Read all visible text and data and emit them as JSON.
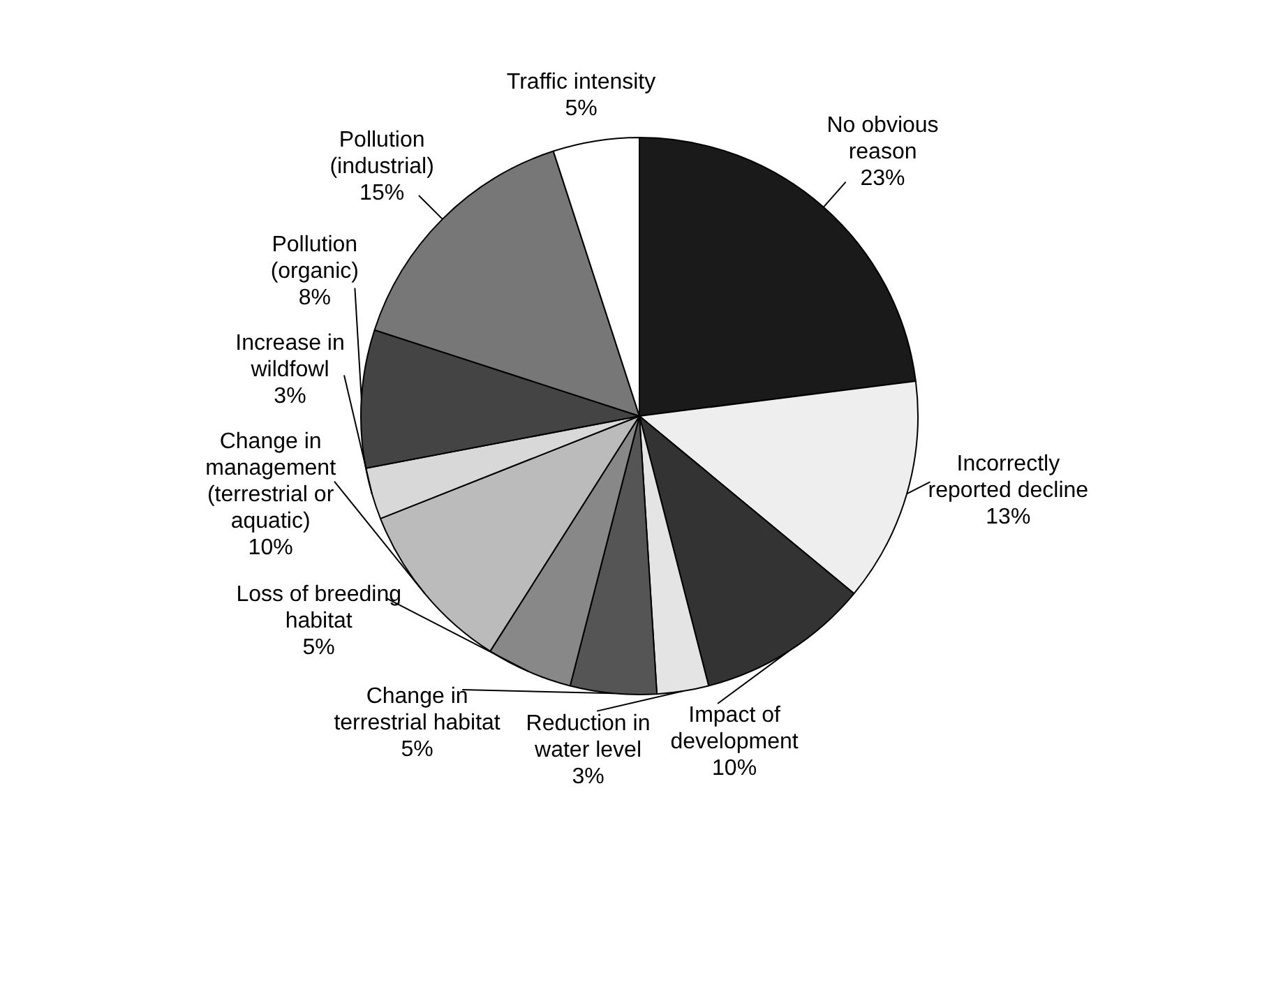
{
  "chart_data": {
    "type": "pie",
    "categories": [
      "No obvious reason",
      "Incorrectly reported decline",
      "Impact of development",
      "Reduction in water level",
      "Change in terrestrial habitat",
      "Loss of breeding habitat",
      "Change in management (terrestrial or aquatic)",
      "Increase in wildfowl",
      "Pollution (organic)",
      "Pollution (industrial)",
      "Traffic intensity"
    ],
    "values": [
      23,
      13,
      10,
      3,
      5,
      5,
      10,
      3,
      8,
      15,
      5
    ],
    "value_labels": [
      "23%",
      "13%",
      "10%",
      "3%",
      "5%",
      "5%",
      "10%",
      "3%",
      "8%",
      "15%",
      "5%"
    ],
    "colors": [
      "#1a1a1a",
      "#eeeeee",
      "#333333",
      "#e4e4e4",
      "#555555",
      "#888888",
      "#bbbbbb",
      "#d8d8d8",
      "#444444",
      "#777777",
      "#ffffff"
    ],
    "legend": false
  }
}
